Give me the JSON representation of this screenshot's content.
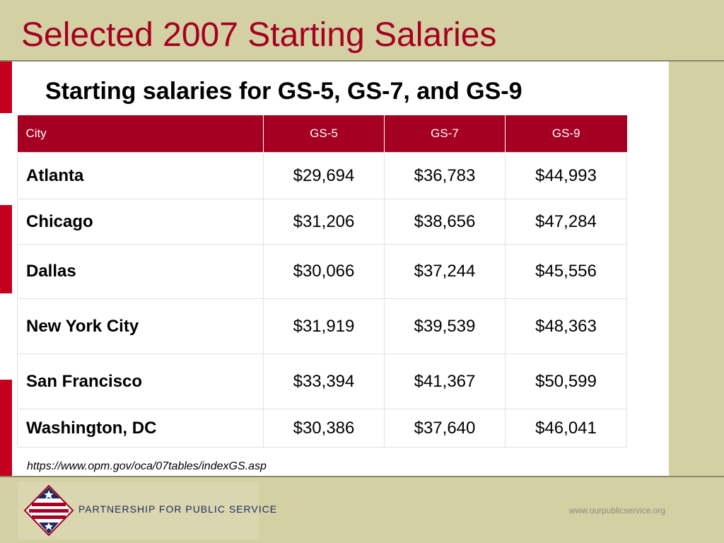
{
  "title": "Selected 2007 Starting Salaries",
  "subtitle": "Starting salaries for GS-5, GS-7, and GS-9",
  "table": {
    "headers": [
      "City",
      "GS-5",
      "GS-7",
      "GS-9"
    ],
    "rows": [
      {
        "city": "Atlanta",
        "gs5": "$29,694",
        "gs7": "$36,783",
        "gs9": "$44,993"
      },
      {
        "city": "Chicago",
        "gs5": "$31,206",
        "gs7": "$38,656",
        "gs9": "$47,284"
      },
      {
        "city": "Dallas",
        "gs5": "$30,066",
        "gs7": "$37,244",
        "gs9": "$45,556"
      },
      {
        "city": "New York City",
        "gs5": "$31,919",
        "gs7": "$39,539",
        "gs9": "$48,363"
      },
      {
        "city": "San Francisco",
        "gs5": "$33,394",
        "gs7": "$41,367",
        "gs9": "$50,599"
      },
      {
        "city": "Washington, DC",
        "gs5": "$30,386",
        "gs7": "$37,640",
        "gs9": "$46,041"
      }
    ]
  },
  "source": "https://www.opm.gov/oca/07tables/indexGS.asp",
  "footer": {
    "logo_text": "PARTNERSHIP FOR PUBLIC SERVICE",
    "logo_icon": "star-stripes-diamond-logo",
    "url": "www.ourpublicservice.org"
  },
  "colors": {
    "accent": "#a50021",
    "background": "#d3d0a3",
    "logo_navy": "#1e2a5a"
  }
}
